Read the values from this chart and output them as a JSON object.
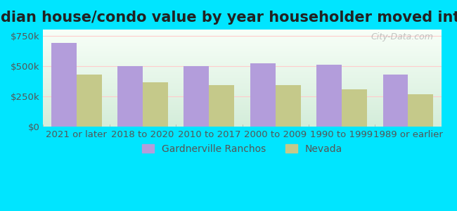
{
  "title": "Median house/condo value by year householder moved into unit",
  "categories": [
    "2021 or later",
    "2018 to 2020",
    "2010 to 2017",
    "2000 to 2009",
    "1990 to 1999",
    "1989 or earlier"
  ],
  "gardnerville_values": [
    690000,
    500000,
    500000,
    525000,
    510000,
    430000
  ],
  "nevada_values": [
    430000,
    365000,
    345000,
    340000,
    310000,
    270000
  ],
  "gardnerville_color": "#b39ddb",
  "nevada_color": "#c5c98a",
  "ylim": [
    0,
    800000
  ],
  "yticks": [
    0,
    250000,
    500000,
    750000
  ],
  "ytick_labels": [
    "$0",
    "$250k",
    "$500k",
    "$750k"
  ],
  "background_color": "#00e5ff",
  "plot_bg_start": "#f0fff0",
  "plot_bg_end": "#ffffff",
  "bar_width": 0.38,
  "legend_labels": [
    "Gardnerville Ranchos",
    "Nevada"
  ],
  "watermark": "City-Data.com",
  "title_fontsize": 15,
  "tick_fontsize": 9.5,
  "legend_fontsize": 10
}
